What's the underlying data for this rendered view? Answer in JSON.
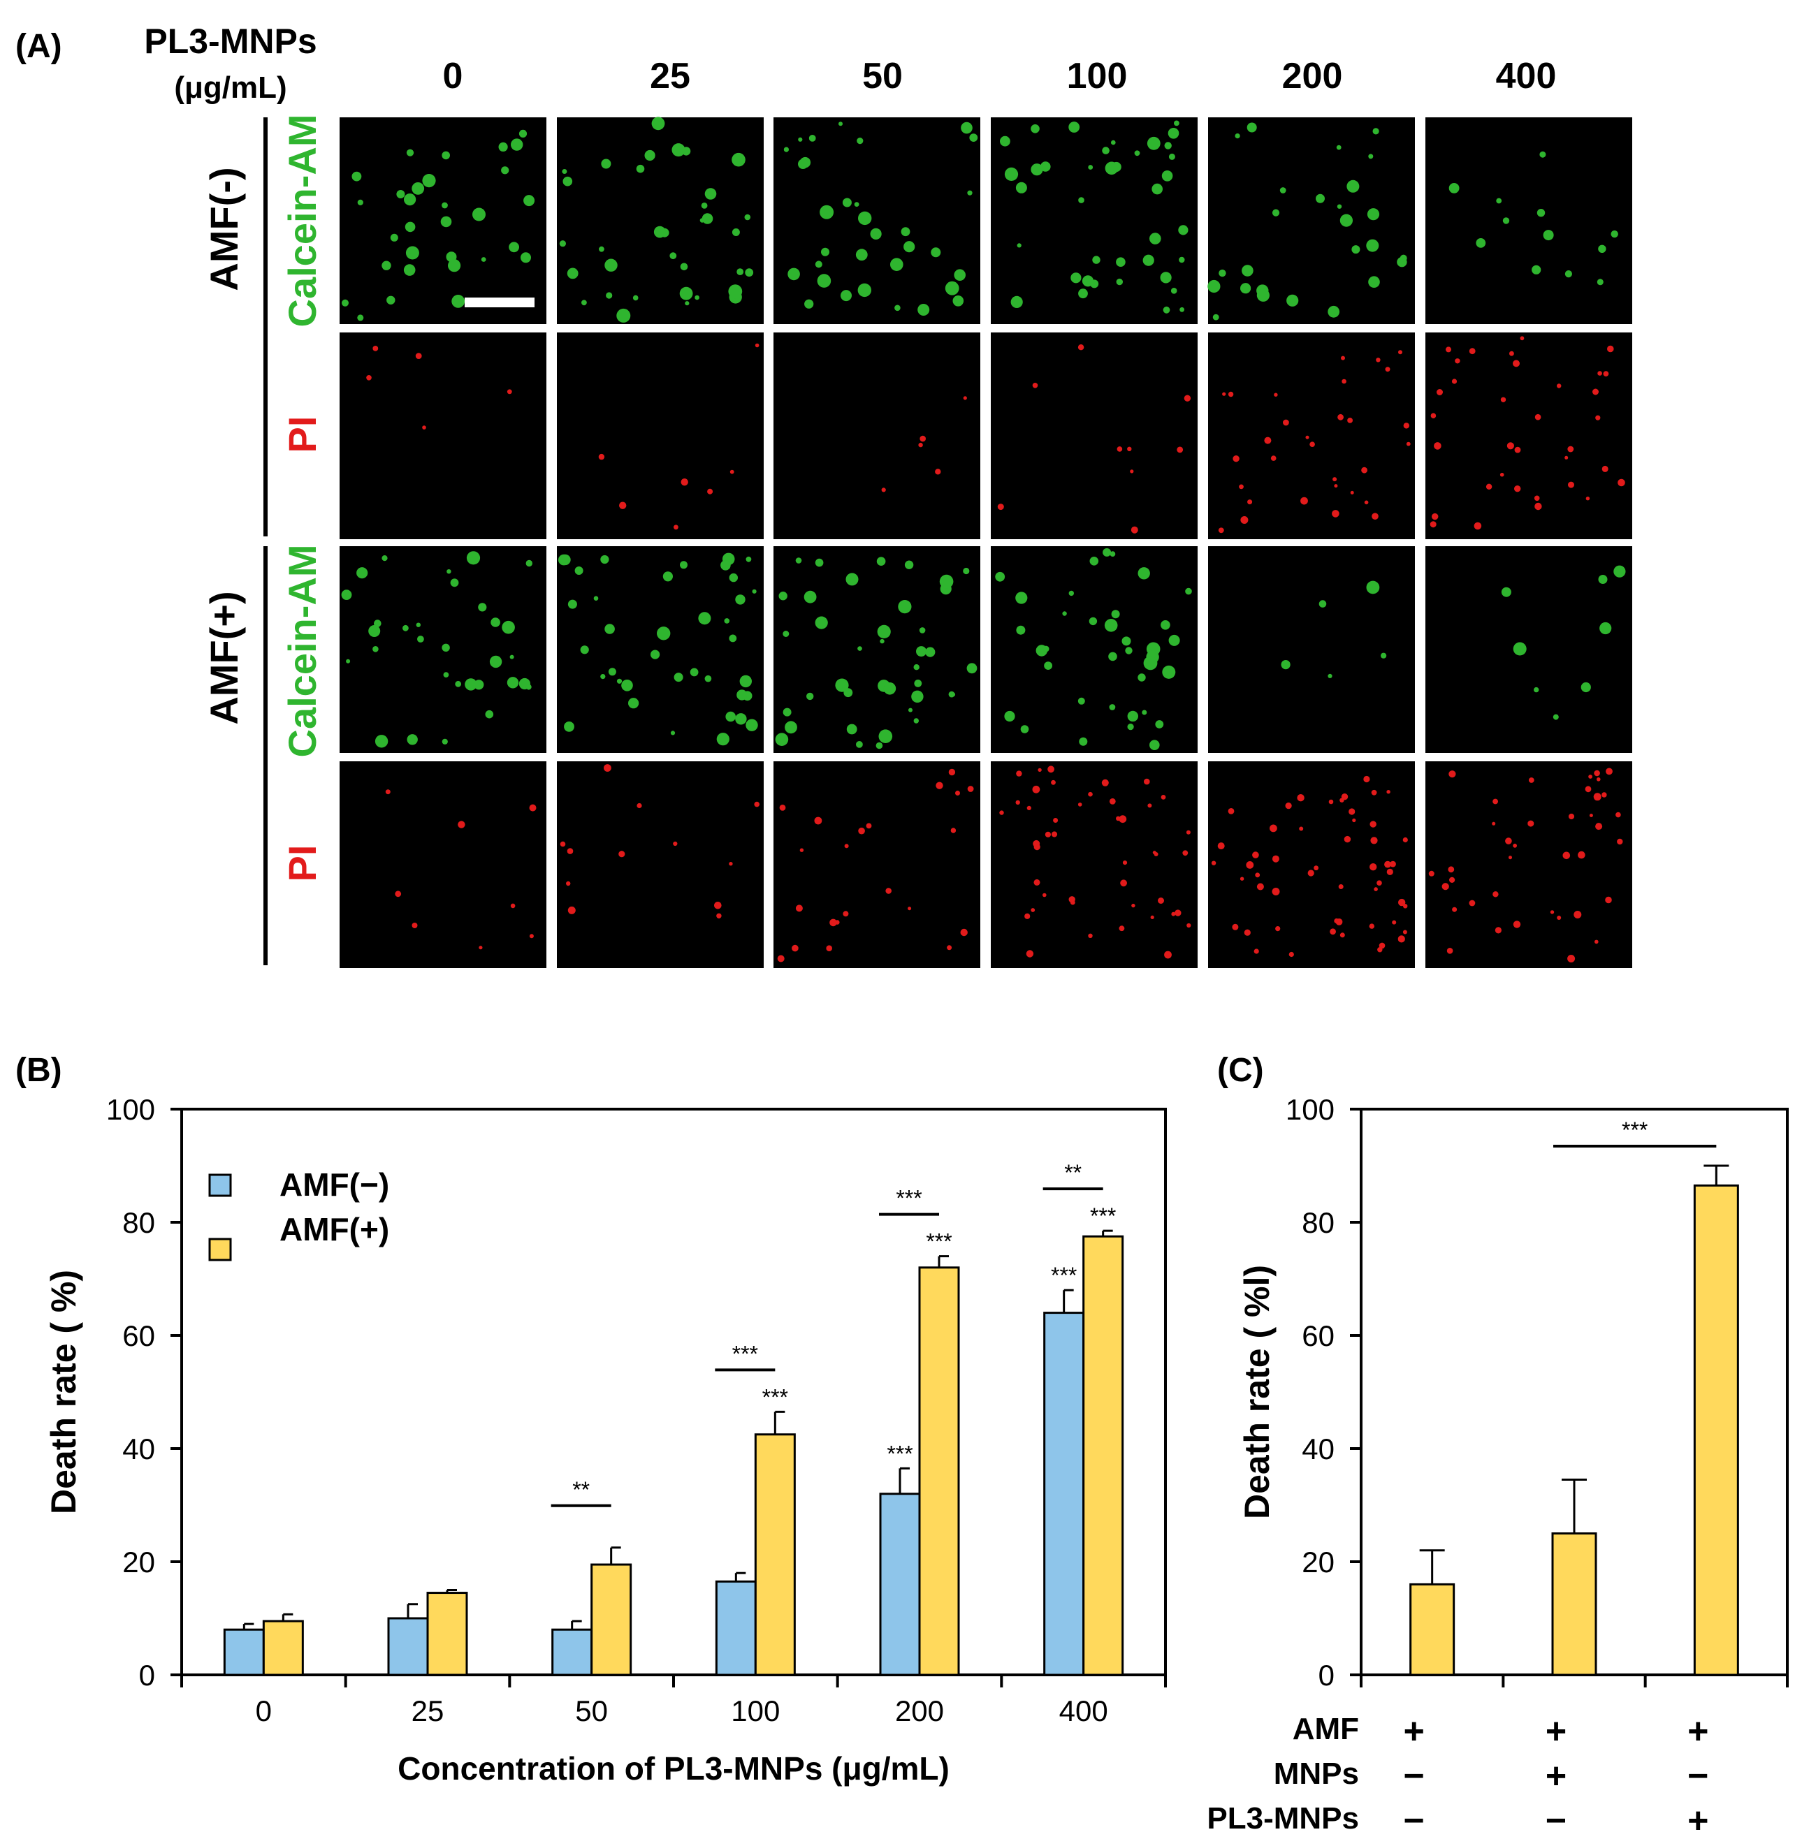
{
  "colors": {
    "calcein": "#2fb52f",
    "pi": "#e21b1b",
    "amf_minus_bar": "#8ec5ea",
    "amf_plus_bar": "#ffd95c",
    "axis": "#000000"
  },
  "panel_a": {
    "label": "(A)",
    "header_line1": "PL3-MNPs",
    "header_line2": "(μg/mL)",
    "concentrations": [
      "0",
      "25",
      "50",
      "100",
      "200",
      "400"
    ],
    "groups": [
      {
        "name": "AMF(-)",
        "stains": [
          "Calcein-AM",
          "PI"
        ]
      },
      {
        "name": "AMF(+)",
        "stains": [
          "Calcein-AM",
          "PI"
        ]
      }
    ],
    "cell_counts": [
      [
        30,
        34,
        32,
        38,
        26,
        12
      ],
      [
        5,
        7,
        5,
        9,
        30,
        34
      ],
      [
        32,
        38,
        40,
        36,
        5,
        8
      ],
      [
        8,
        12,
        22,
        44,
        52,
        38
      ]
    ]
  },
  "chart_data": [
    {
      "panel": "(B)",
      "type": "bar",
      "categories": [
        "0",
        "25",
        "50",
        "100",
        "200",
        "400"
      ],
      "series": [
        {
          "name": "AMF(−)",
          "values": [
            8,
            10,
            8,
            16.5,
            32,
            64
          ],
          "errors": [
            1,
            2.5,
            1.5,
            1.5,
            4.5,
            4
          ]
        },
        {
          "name": "AMF(+)",
          "values": [
            9.5,
            14.5,
            19.5,
            42.5,
            72,
            77.5
          ],
          "errors": [
            1.2,
            0.5,
            3,
            4,
            2,
            1
          ]
        }
      ],
      "xlabel": "Concentration of PL3-MNPs (μg/mL)",
      "ylabel": "Death rate ( %)",
      "ylim": [
        0,
        100
      ],
      "yticks": [
        "0",
        "20",
        "40",
        "60",
        "80",
        "100"
      ],
      "legend_position": "top-left",
      "bracket_annotations": [
        {
          "category": "50",
          "text": "**"
        },
        {
          "category": "100",
          "text": "***"
        },
        {
          "category": "200",
          "text": "***"
        },
        {
          "category": "400",
          "text": "**"
        }
      ],
      "bar_annotations": [
        {
          "series": 1,
          "category": "100",
          "text": "***"
        },
        {
          "series": 0,
          "category": "200",
          "text": "***"
        },
        {
          "series": 1,
          "category": "200",
          "text": "***"
        },
        {
          "series": 0,
          "category": "400",
          "text": "***"
        },
        {
          "series": 1,
          "category": "400",
          "text": "***"
        }
      ]
    },
    {
      "panel": "(C)",
      "type": "bar",
      "values": [
        16,
        25,
        86.5
      ],
      "errors": [
        6,
        9.5,
        3.5
      ],
      "ylabel": "Death rate ( %l)",
      "ylim": [
        0,
        100
      ],
      "yticks": [
        "0",
        "20",
        "40",
        "60",
        "80",
        "100"
      ],
      "significance": {
        "from": 1,
        "to": 2,
        "text": "***"
      },
      "conditions": [
        {
          "label": "AMF",
          "values": [
            "+",
            "+",
            "+"
          ]
        },
        {
          "label": "MNPs",
          "values": [
            "−",
            "+",
            "−"
          ]
        },
        {
          "label": "PL3-MNPs",
          "values": [
            "−",
            "−",
            "+"
          ]
        }
      ]
    }
  ]
}
